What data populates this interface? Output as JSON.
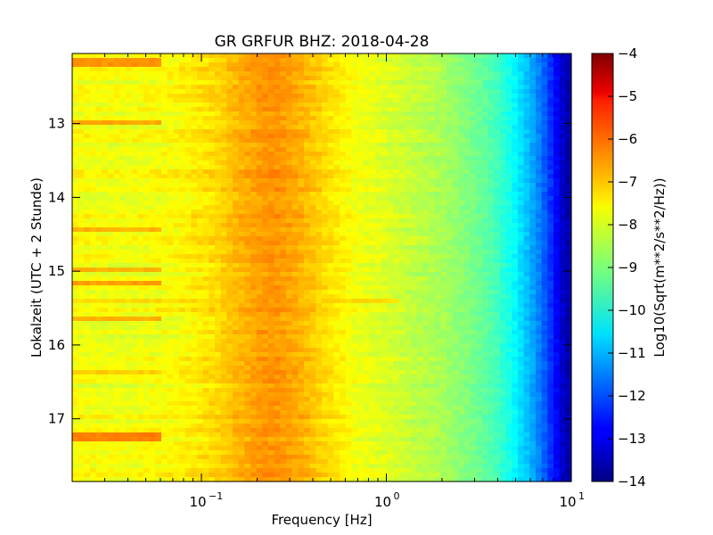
{
  "chart_data": {
    "type": "heatmap",
    "title": "GR GRFUR BHZ: 2018-04-28",
    "xlabel": "Frequency [Hz]",
    "ylabel": "Lokalzeit (UTC + 2 Stunde)",
    "x_scale": "log",
    "xlim": [
      0.02,
      10
    ],
    "ylim": [
      17.85,
      12.05
    ],
    "x_ticks": [
      {
        "value": 0.1,
        "base": "10",
        "exp": "−1"
      },
      {
        "value": 1,
        "base": "10",
        "exp": "0"
      },
      {
        "value": 10,
        "base": "10",
        "exp": "1"
      }
    ],
    "y_ticks": [
      {
        "value": 13,
        "label": "13"
      },
      {
        "value": 14,
        "label": "14"
      },
      {
        "value": 15,
        "label": "15"
      },
      {
        "value": 16,
        "label": "16"
      },
      {
        "value": 17,
        "label": "17"
      }
    ],
    "colorbar": {
      "label": "Log10(Sqrt(m**2/s**2/Hz))",
      "colormap": "jet",
      "range": [
        -14,
        -4
      ],
      "ticks": [
        "−4",
        "−5",
        "−6",
        "−7",
        "−8",
        "−9",
        "−10",
        "−11",
        "−12",
        "−13",
        "−14"
      ]
    },
    "spectrum_profile": {
      "frequency_hz": [
        0.02,
        0.04,
        0.06,
        0.08,
        0.12,
        0.15,
        0.2,
        0.25,
        0.35,
        0.5,
        0.7,
        1,
        1.5,
        2,
        3,
        4,
        5,
        6,
        7,
        8,
        9,
        10
      ],
      "value": [
        -7.8,
        -7.9,
        -7.8,
        -7.7,
        -7.4,
        -7.1,
        -6.8,
        -6.7,
        -7.0,
        -7.5,
        -7.9,
        -8.1,
        -8.4,
        -8.6,
        -9.1,
        -9.6,
        -10.3,
        -11.0,
        -11.7,
        -12.5,
        -13.3,
        -13.7
      ]
    },
    "events": [
      {
        "time": 12.17,
        "f_max_hz": 0.06,
        "value": -6.7
      },
      {
        "time": 13.0,
        "f_max_hz": 0.06,
        "value": -6.9
      },
      {
        "time": 14.45,
        "f_max_hz": 0.06,
        "value": -7.0
      },
      {
        "time": 14.98,
        "f_max_hz": 0.06,
        "value": -7.0
      },
      {
        "time": 15.18,
        "f_max_hz": 0.06,
        "value": -6.8
      },
      {
        "time": 15.42,
        "f_max_hz": 1.2,
        "value": -7.4
      },
      {
        "time": 15.62,
        "f_max_hz": 0.06,
        "value": -7.0
      },
      {
        "time": 16.38,
        "f_max_hz": 0.06,
        "value": -7.3
      },
      {
        "time": 17.25,
        "f_max_hz": 0.06,
        "value": -6.5
      }
    ]
  }
}
